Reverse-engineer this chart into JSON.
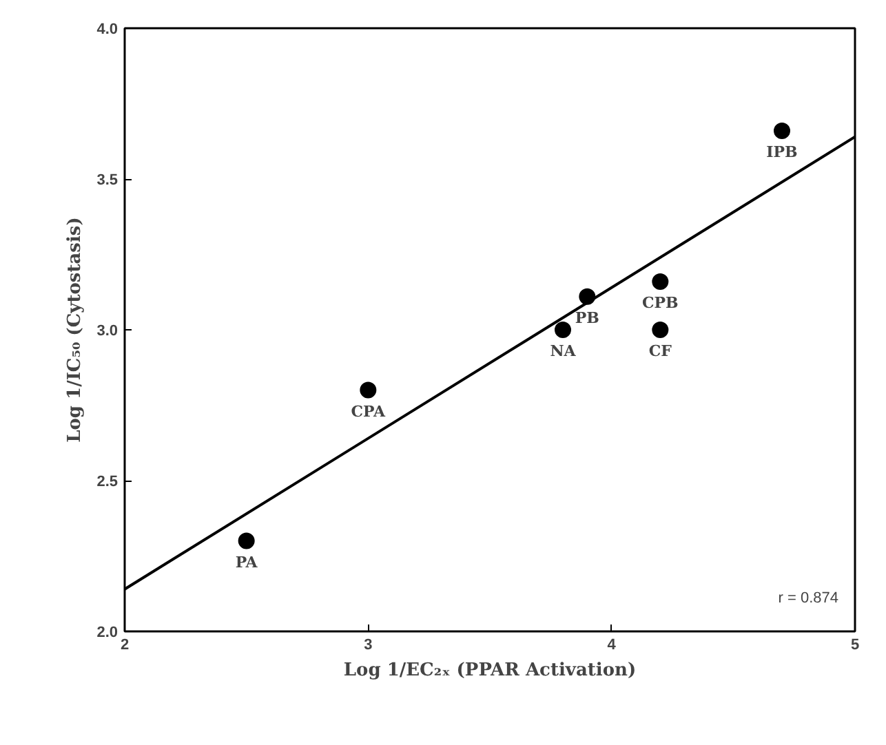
{
  "chart_data": {
    "type": "scatter",
    "xlabel": "Log 1/EC₂ₓ (PPAR Activation)",
    "ylabel": "Log 1/IC₅₀ (Cytostasis)",
    "xlim": [
      2,
      5
    ],
    "xticks": [
      2,
      3,
      4,
      5
    ],
    "ylim": [
      2.0,
      4.0
    ],
    "yticks": [
      {
        "value": 2.0,
        "label": "2.0"
      },
      {
        "value": 2.5,
        "label": "2.5"
      },
      {
        "value": 3.0,
        "label": "3.0"
      },
      {
        "value": 3.5,
        "label": "3.5"
      },
      {
        "value": 4.0,
        "label": "4.0"
      }
    ],
    "grid": false,
    "series": [
      {
        "marker": "circle",
        "color": "#000000",
        "x": [
          2.5,
          3.0,
          3.8,
          3.9,
          4.2,
          4.2,
          4.7
        ],
        "values": [
          2.3,
          2.8,
          3.0,
          3.11,
          3.16,
          3.0,
          3.66
        ]
      },
      {
        "type": "line",
        "color": "#000000",
        "x": [
          2,
          5
        ],
        "values": [
          2.14,
          3.64
        ]
      }
    ],
    "annotations": [
      {
        "text": "PA",
        "x": 2.5,
        "y": 2.3
      },
      {
        "text": "CPA",
        "x": 3.0,
        "y": 2.8
      },
      {
        "text": "NA",
        "x": 3.8,
        "y": 3.0
      },
      {
        "text": "PB",
        "x": 3.9,
        "y": 3.11
      },
      {
        "text": "CPB",
        "x": 4.2,
        "y": 3.16
      },
      {
        "text": "CF",
        "x": 4.2,
        "y": 3.0
      },
      {
        "text": "IPB",
        "x": 4.7,
        "y": 3.66
      },
      "r = 0.874"
    ]
  }
}
